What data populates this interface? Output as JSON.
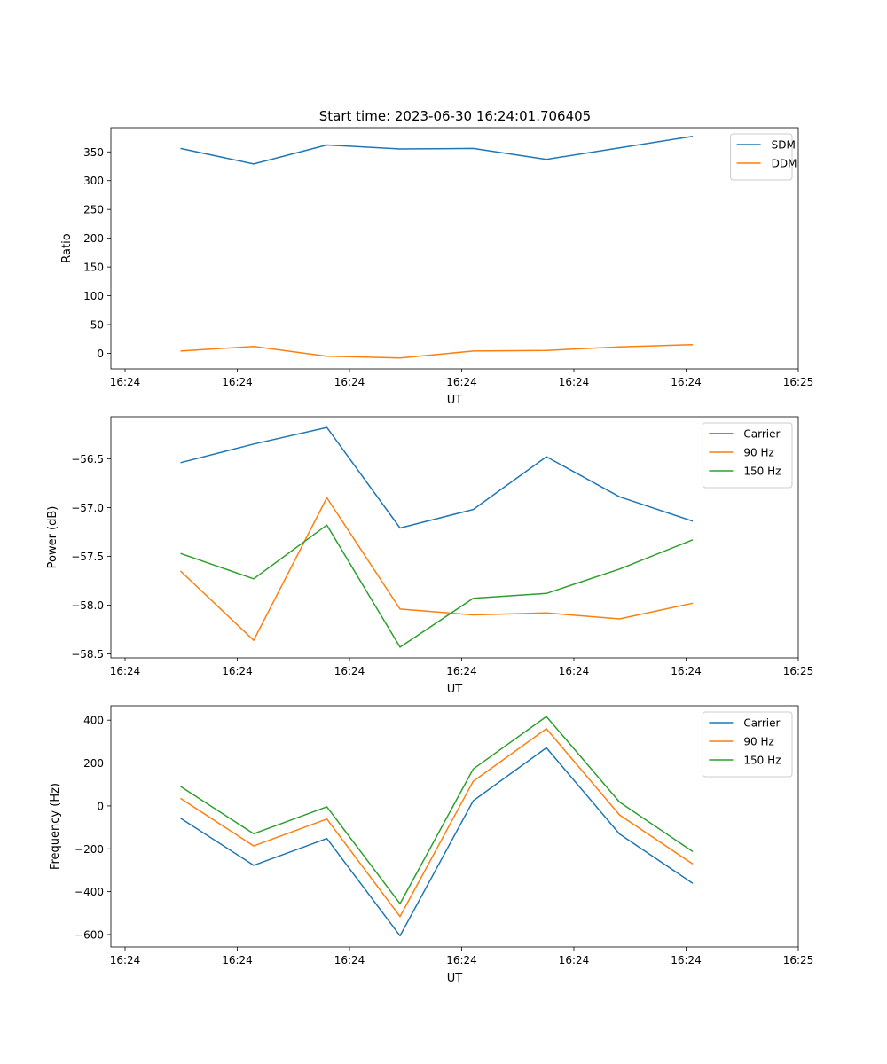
{
  "figure": {
    "title": "Start time: 2023-06-30 16:24:01.706405"
  },
  "chart_data": [
    {
      "type": "line",
      "xlabel": "UT",
      "ylabel": "Ratio",
      "x_ticks": [
        "16:24",
        "16:24",
        "16:24",
        "16:24",
        "16:24",
        "16:24",
        "16:25"
      ],
      "y_ticks": [
        0,
        50,
        100,
        150,
        200,
        250,
        300,
        350
      ],
      "ylim": [
        -27,
        392
      ],
      "legend_position": "top-right",
      "grid": false,
      "series": [
        {
          "name": "SDM",
          "color": "#1f77b4",
          "values": [
            356,
            329,
            362,
            355,
            356,
            337,
            357,
            377
          ]
        },
        {
          "name": "DDM",
          "color": "#ff7f0e",
          "values": [
            4,
            12,
            -5,
            -8,
            4,
            5,
            11,
            15
          ]
        }
      ]
    },
    {
      "type": "line",
      "xlabel": "UT",
      "ylabel": "Power (dB)",
      "x_ticks": [
        "16:24",
        "16:24",
        "16:24",
        "16:24",
        "16:24",
        "16:24",
        "16:25"
      ],
      "y_ticks": [
        -56.5,
        -57.0,
        -57.5,
        -58.0,
        -58.5
      ],
      "y_tick_labels": [
        "−56.5",
        "−57.0",
        "−57.5",
        "−58.0",
        "−58.5"
      ],
      "ylim": [
        -58.54,
        -56.07
      ],
      "legend_position": "top-right",
      "grid": false,
      "series": [
        {
          "name": "Carrier",
          "color": "#1f77b4",
          "values": [
            -56.54,
            -56.35,
            -56.18,
            -57.21,
            -57.02,
            -56.48,
            -56.89,
            -57.14
          ]
        },
        {
          "name": "90 Hz",
          "color": "#ff7f0e",
          "values": [
            -57.65,
            -58.36,
            -56.9,
            -58.04,
            -58.1,
            -58.08,
            -58.14,
            -57.98
          ]
        },
        {
          "name": "150 Hz",
          "color": "#2ca02c",
          "values": [
            -57.47,
            -57.73,
            -57.18,
            -58.43,
            -57.93,
            -57.88,
            -57.63,
            -57.33
          ]
        }
      ]
    },
    {
      "type": "line",
      "xlabel": "UT",
      "ylabel": "Frequency (Hz)",
      "x_ticks": [
        "16:24",
        "16:24",
        "16:24",
        "16:24",
        "16:24",
        "16:24",
        "16:25"
      ],
      "y_ticks": [
        400,
        200,
        0,
        -200,
        -400,
        -600
      ],
      "y_tick_labels": [
        "400",
        "200",
        "0",
        "−200",
        "−400",
        "−600"
      ],
      "ylim": [
        -658,
        467
      ],
      "legend_position": "top-right",
      "grid": false,
      "series": [
        {
          "name": "Carrier",
          "color": "#1f77b4",
          "values": [
            -57,
            -277,
            -152,
            -606,
            24,
            271,
            -131,
            -361
          ]
        },
        {
          "name": "90 Hz",
          "color": "#ff7f0e",
          "values": [
            35,
            -187,
            -61,
            -516,
            115,
            360,
            -42,
            -271
          ]
        },
        {
          "name": "150 Hz",
          "color": "#2ca02c",
          "values": [
            91,
            -130,
            -4,
            -456,
            172,
            417,
            18,
            -213
          ]
        }
      ]
    }
  ]
}
